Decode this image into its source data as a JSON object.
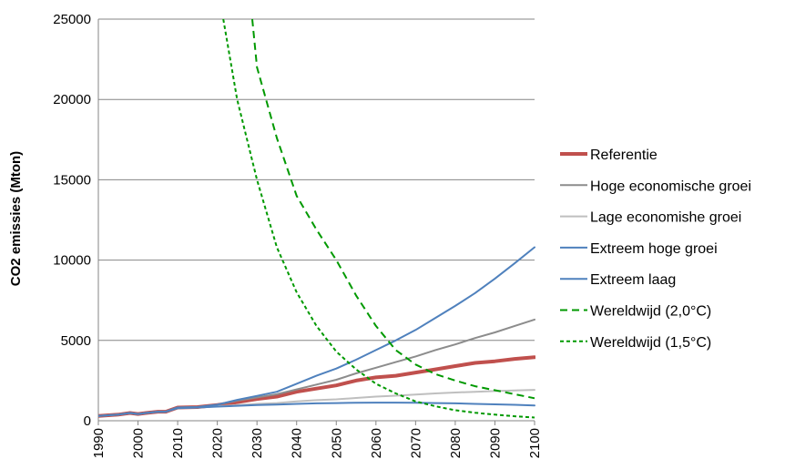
{
  "chart_data": {
    "type": "line",
    "title": "",
    "xlabel": "",
    "ylabel": "CO2 emissies (Mton)",
    "xlim": [
      1990,
      2100
    ],
    "ylim": [
      0,
      25000
    ],
    "xticks": [
      "1990",
      "2000",
      "2010",
      "2020",
      "2030",
      "2040",
      "2050",
      "2060",
      "2070",
      "2080",
      "2090",
      "2100"
    ],
    "yticks": [
      "0",
      "5000",
      "10000",
      "15000",
      "20000",
      "25000"
    ],
    "grid": "horizontal",
    "legend": "right",
    "series": [
      {
        "name": "Referentie",
        "color": "#c0504d",
        "width": 4,
        "dash": "",
        "x": [
          1990,
          1995,
          1998,
          2000,
          2002,
          2005,
          2007,
          2010,
          2015,
          2020,
          2025,
          2030,
          2035,
          2040,
          2045,
          2050,
          2055,
          2060,
          2065,
          2070,
          2075,
          2080,
          2085,
          2090,
          2095,
          2100
        ],
        "y": [
          300,
          380,
          480,
          420,
          480,
          560,
          560,
          820,
          850,
          980,
          1150,
          1350,
          1500,
          1800,
          2000,
          2200,
          2500,
          2700,
          2800,
          3000,
          3200,
          3400,
          3600,
          3700,
          3850,
          3950
        ]
      },
      {
        "name": "Hoge economische groei",
        "color": "#8c8c8c",
        "width": 2,
        "dash": "",
        "x": [
          1990,
          1995,
          1998,
          2000,
          2002,
          2005,
          2007,
          2010,
          2015,
          2020,
          2025,
          2030,
          2035,
          2040,
          2045,
          2050,
          2055,
          2060,
          2065,
          2070,
          2075,
          2080,
          2085,
          2090,
          2095,
          2100
        ],
        "y": [
          300,
          380,
          480,
          420,
          480,
          560,
          560,
          820,
          850,
          1000,
          1250,
          1450,
          1650,
          1950,
          2250,
          2550,
          2950,
          3300,
          3650,
          4000,
          4400,
          4750,
          5150,
          5500,
          5900,
          6300
        ]
      },
      {
        "name": "Lage economishe groei",
        "color": "#bfbfbf",
        "width": 2,
        "dash": "",
        "x": [
          1990,
          1995,
          1998,
          2000,
          2002,
          2005,
          2007,
          2010,
          2015,
          2020,
          2025,
          2030,
          2035,
          2040,
          2045,
          2050,
          2055,
          2060,
          2065,
          2070,
          2075,
          2080,
          2085,
          2090,
          2095,
          2100
        ],
        "y": [
          300,
          380,
          480,
          420,
          480,
          560,
          560,
          800,
          820,
          900,
          970,
          1050,
          1100,
          1200,
          1280,
          1330,
          1420,
          1500,
          1560,
          1630,
          1700,
          1760,
          1800,
          1850,
          1880,
          1920
        ]
      },
      {
        "name": "Extreem hoge groei",
        "color": "#4f81bd",
        "width": 2,
        "dash": "",
        "x": [
          1990,
          1995,
          1998,
          2000,
          2002,
          2005,
          2007,
          2010,
          2015,
          2020,
          2025,
          2030,
          2035,
          2040,
          2045,
          2050,
          2055,
          2060,
          2065,
          2070,
          2075,
          2080,
          2085,
          2090,
          2095,
          2100
        ],
        "y": [
          300,
          380,
          480,
          420,
          480,
          560,
          560,
          820,
          850,
          1000,
          1300,
          1550,
          1800,
          2300,
          2800,
          3250,
          3800,
          4400,
          5000,
          5650,
          6400,
          7150,
          7950,
          8850,
          9800,
          10800
        ]
      },
      {
        "name": "Extreem laag",
        "color": "#4f81bd",
        "width": 2,
        "dash": "",
        "x": [
          1990,
          1995,
          1998,
          2000,
          2002,
          2005,
          2007,
          2010,
          2015,
          2020,
          2025,
          2030,
          2035,
          2040,
          2045,
          2050,
          2055,
          2060,
          2065,
          2070,
          2075,
          2080,
          2085,
          2090,
          2095,
          2100
        ],
        "y": [
          300,
          380,
          480,
          420,
          480,
          560,
          560,
          780,
          820,
          880,
          930,
          980,
          1010,
          1050,
          1080,
          1100,
          1120,
          1130,
          1130,
          1120,
          1100,
          1080,
          1050,
          1020,
          990,
          950
        ]
      },
      {
        "name": "Wereldwijd (2,0°C)",
        "color": "#009900",
        "width": 2,
        "dash": "8,5",
        "x": [
          2028.8,
          2030,
          2035,
          2040,
          2045,
          2050,
          2055,
          2060,
          2065,
          2070,
          2075,
          2080,
          2085,
          2090,
          2095,
          2100
        ],
        "y": [
          25000,
          22000,
          17600,
          14000,
          11900,
          10000,
          7800,
          5900,
          4400,
          3500,
          2900,
          2500,
          2150,
          1900,
          1650,
          1400
        ]
      },
      {
        "name": "Wereldwijd (1,5°C)",
        "color": "#009900",
        "width": 2,
        "dash": "4,3",
        "x": [
          2021.5,
          2025,
          2030,
          2035,
          2040,
          2045,
          2050,
          2055,
          2060,
          2065,
          2070,
          2075,
          2080,
          2085,
          2090,
          2095,
          2100
        ],
        "y": [
          25000,
          20000,
          15000,
          10800,
          8000,
          5900,
          4300,
          3200,
          2300,
          1700,
          1200,
          900,
          650,
          500,
          380,
          280,
          200
        ]
      }
    ]
  }
}
